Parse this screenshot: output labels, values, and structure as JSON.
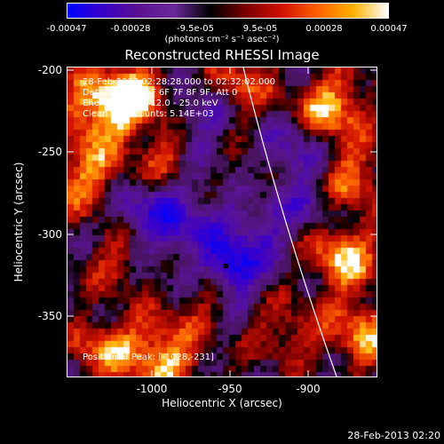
{
  "colorbar": {
    "tick_labels": [
      "-0.00047",
      "-0.00028",
      "-9.5e-05",
      "9.5e-05",
      "0.00028",
      "0.00047"
    ],
    "units_text": "(photons cm⁻² s⁻¹ asec⁻²)",
    "colormap": [
      "#0000ff",
      "#3a00c8",
      "#5a1090",
      "#6a2a9a",
      "#000000",
      "#7a0000",
      "#d01000",
      "#ff6000",
      "#ffb000",
      "#ffffff"
    ]
  },
  "title": "Reconstructed RHESSI Image",
  "annotations": {
    "time_range": "28-Feb-2013 02:28:28.000 to 02:32:02.000",
    "detectors": "Detectors: 3F 5F 6F 7F 8F 9F, Att 0",
    "energy": "Energy Range: 12.0 - 25.0 keV",
    "clean": "Clean    Total counts: 5.14E+03",
    "peak": "Position of Peak: [-1028,-231]"
  },
  "axes": {
    "x_label": "Heliocentric X (arcsec)",
    "y_label": "Heliocentric Y (arcsec)",
    "x_ticks": [
      "-1000",
      "-950",
      "-900"
    ],
    "y_ticks": [
      "-200",
      "-250",
      "-300",
      "-350"
    ]
  },
  "footer_timestamp": "28-Feb-2013 02:20"
}
